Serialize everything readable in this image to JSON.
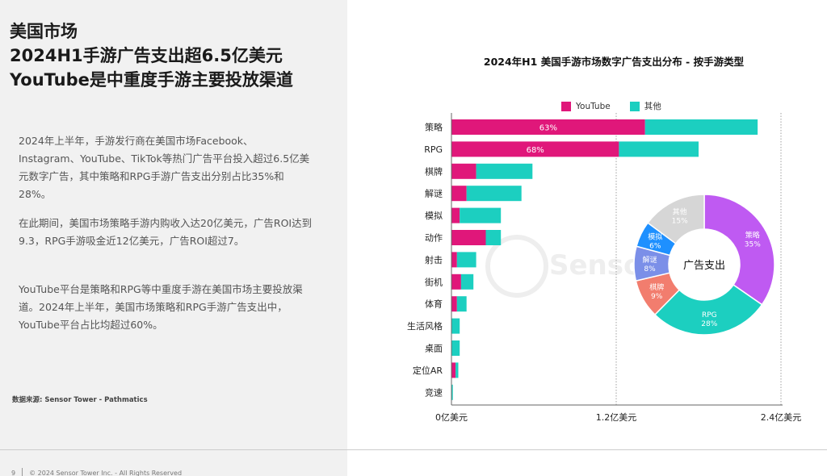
{
  "headline": {
    "line1": "美国市场",
    "line2": "2024H1手游广告支出超6.5亿美元",
    "line3": "YouTube是中重度手游主要投放渠道"
  },
  "paragraphs": [
    "2024年上半年，手游发行商在美国市场Facebook、Instagram、YouTube、TikTok等热门广告平台投入超过6.5亿美元数字广告，其中策略和RPG手游广告支出分别占比35%和28%。",
    "在此期间，美国市场策略手游内购收入达20亿美元，广告ROI达到9.3，RPG手游吸金近12亿美元，广告ROI超过7。",
    "YouTube平台是策略和RPG等中重度手游在美国市场主要投放渠道。2024年上半年，美国市场策略和RPG手游广告支出中，YouTube平台占比均超过60%。"
  ],
  "source": "数据来源: Sensor Tower - Pathmatics",
  "footer": {
    "page_number": "9",
    "copyright": "© 2024 Sensor Tower Inc. - All Rights Reserved"
  },
  "watermark": "SensorTower",
  "colors": {
    "youtube": "#e0177a",
    "other": "#1ccfc0",
    "left_bg": "#f1f1f1"
  },
  "chart_data": [
    {
      "type": "bar",
      "orientation": "horizontal",
      "stacked": true,
      "title": "2024年H1 美国手游市场数字广告支出分布 - 按手游类型",
      "categories": [
        "策略",
        "RPG",
        "棋牌",
        "解谜",
        "模拟",
        "动作",
        "射击",
        "街机",
        "体育",
        "生活风格",
        "桌面",
        "定位AR",
        "竞速"
      ],
      "series": [
        {
          "name": "YouTube",
          "values": [
            1.41,
            1.22,
            0.18,
            0.11,
            0.06,
            0.25,
            0.04,
            0.07,
            0.04,
            0.0,
            0.0,
            0.03,
            0.0
          ]
        },
        {
          "name": "其他",
          "values": [
            0.82,
            0.58,
            0.41,
            0.4,
            0.3,
            0.11,
            0.14,
            0.09,
            0.07,
            0.06,
            0.06,
            0.02,
            0.01
          ]
        }
      ],
      "data_labels": [
        {
          "category": "策略",
          "series": "YouTube",
          "text": "63%"
        },
        {
          "category": "RPG",
          "series": "YouTube",
          "text": "68%"
        }
      ],
      "x_ticks": [
        {
          "value": 0,
          "label": "0亿美元"
        },
        {
          "value": 1.2,
          "label": "1.2亿美元"
        },
        {
          "value": 2.4,
          "label": "2.4亿美元"
        }
      ],
      "xlim": [
        0,
        2.4
      ],
      "legend": "top",
      "grid": "vertical-dotted"
    },
    {
      "type": "pie",
      "donut": true,
      "center_label": "广告支出",
      "slices": [
        {
          "name": "策略",
          "value": 35,
          "label": "35%",
          "color": "#bf5af2"
        },
        {
          "name": "RPG",
          "value": 28,
          "label": "28%",
          "color": "#1ccfc0"
        },
        {
          "name": "棋牌",
          "value": 9,
          "label": "9%",
          "color": "#f27d6e"
        },
        {
          "name": "解谜",
          "value": 8,
          "label": "8%",
          "color": "#7b8fe8"
        },
        {
          "name": "模拟",
          "value": 6,
          "label": "6%",
          "color": "#1e90ff"
        },
        {
          "name": "其他",
          "value": 15,
          "label": "15%",
          "color": "#d6d6d6"
        }
      ]
    }
  ]
}
